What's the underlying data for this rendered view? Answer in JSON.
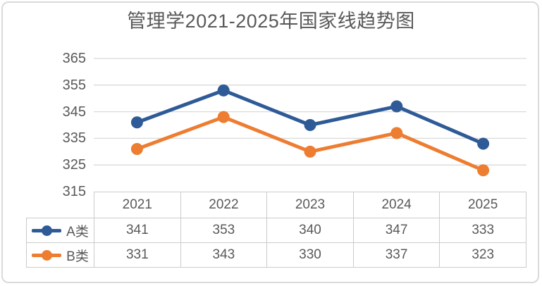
{
  "title": "管理学2021-2025年国家线趋势图",
  "colors": {
    "series_a": "#2e5b97",
    "series_b": "#ed7d31",
    "gridline": "#d9d9d9",
    "table_border": "#cbcbcb",
    "text": "#595959",
    "frame_border": "#dadada",
    "background": "#ffffff"
  },
  "chart_data": {
    "type": "line",
    "title": "管理学2021-2025年国家线趋势图",
    "categories": [
      "2021",
      "2022",
      "2023",
      "2024",
      "2025"
    ],
    "series": [
      {
        "name": "A类",
        "values": [
          341,
          353,
          340,
          347,
          333
        ],
        "color": "#2e5b97",
        "marker": "circle"
      },
      {
        "name": "B类",
        "values": [
          331,
          343,
          330,
          337,
          323
        ],
        "color": "#ed7d31",
        "marker": "circle"
      }
    ],
    "yticks": [
      365,
      355,
      345,
      335,
      325,
      315
    ],
    "ylim": [
      315,
      365
    ],
    "xlabel": "",
    "ylabel": "",
    "grid": true,
    "legend_position": "data-table-left"
  }
}
